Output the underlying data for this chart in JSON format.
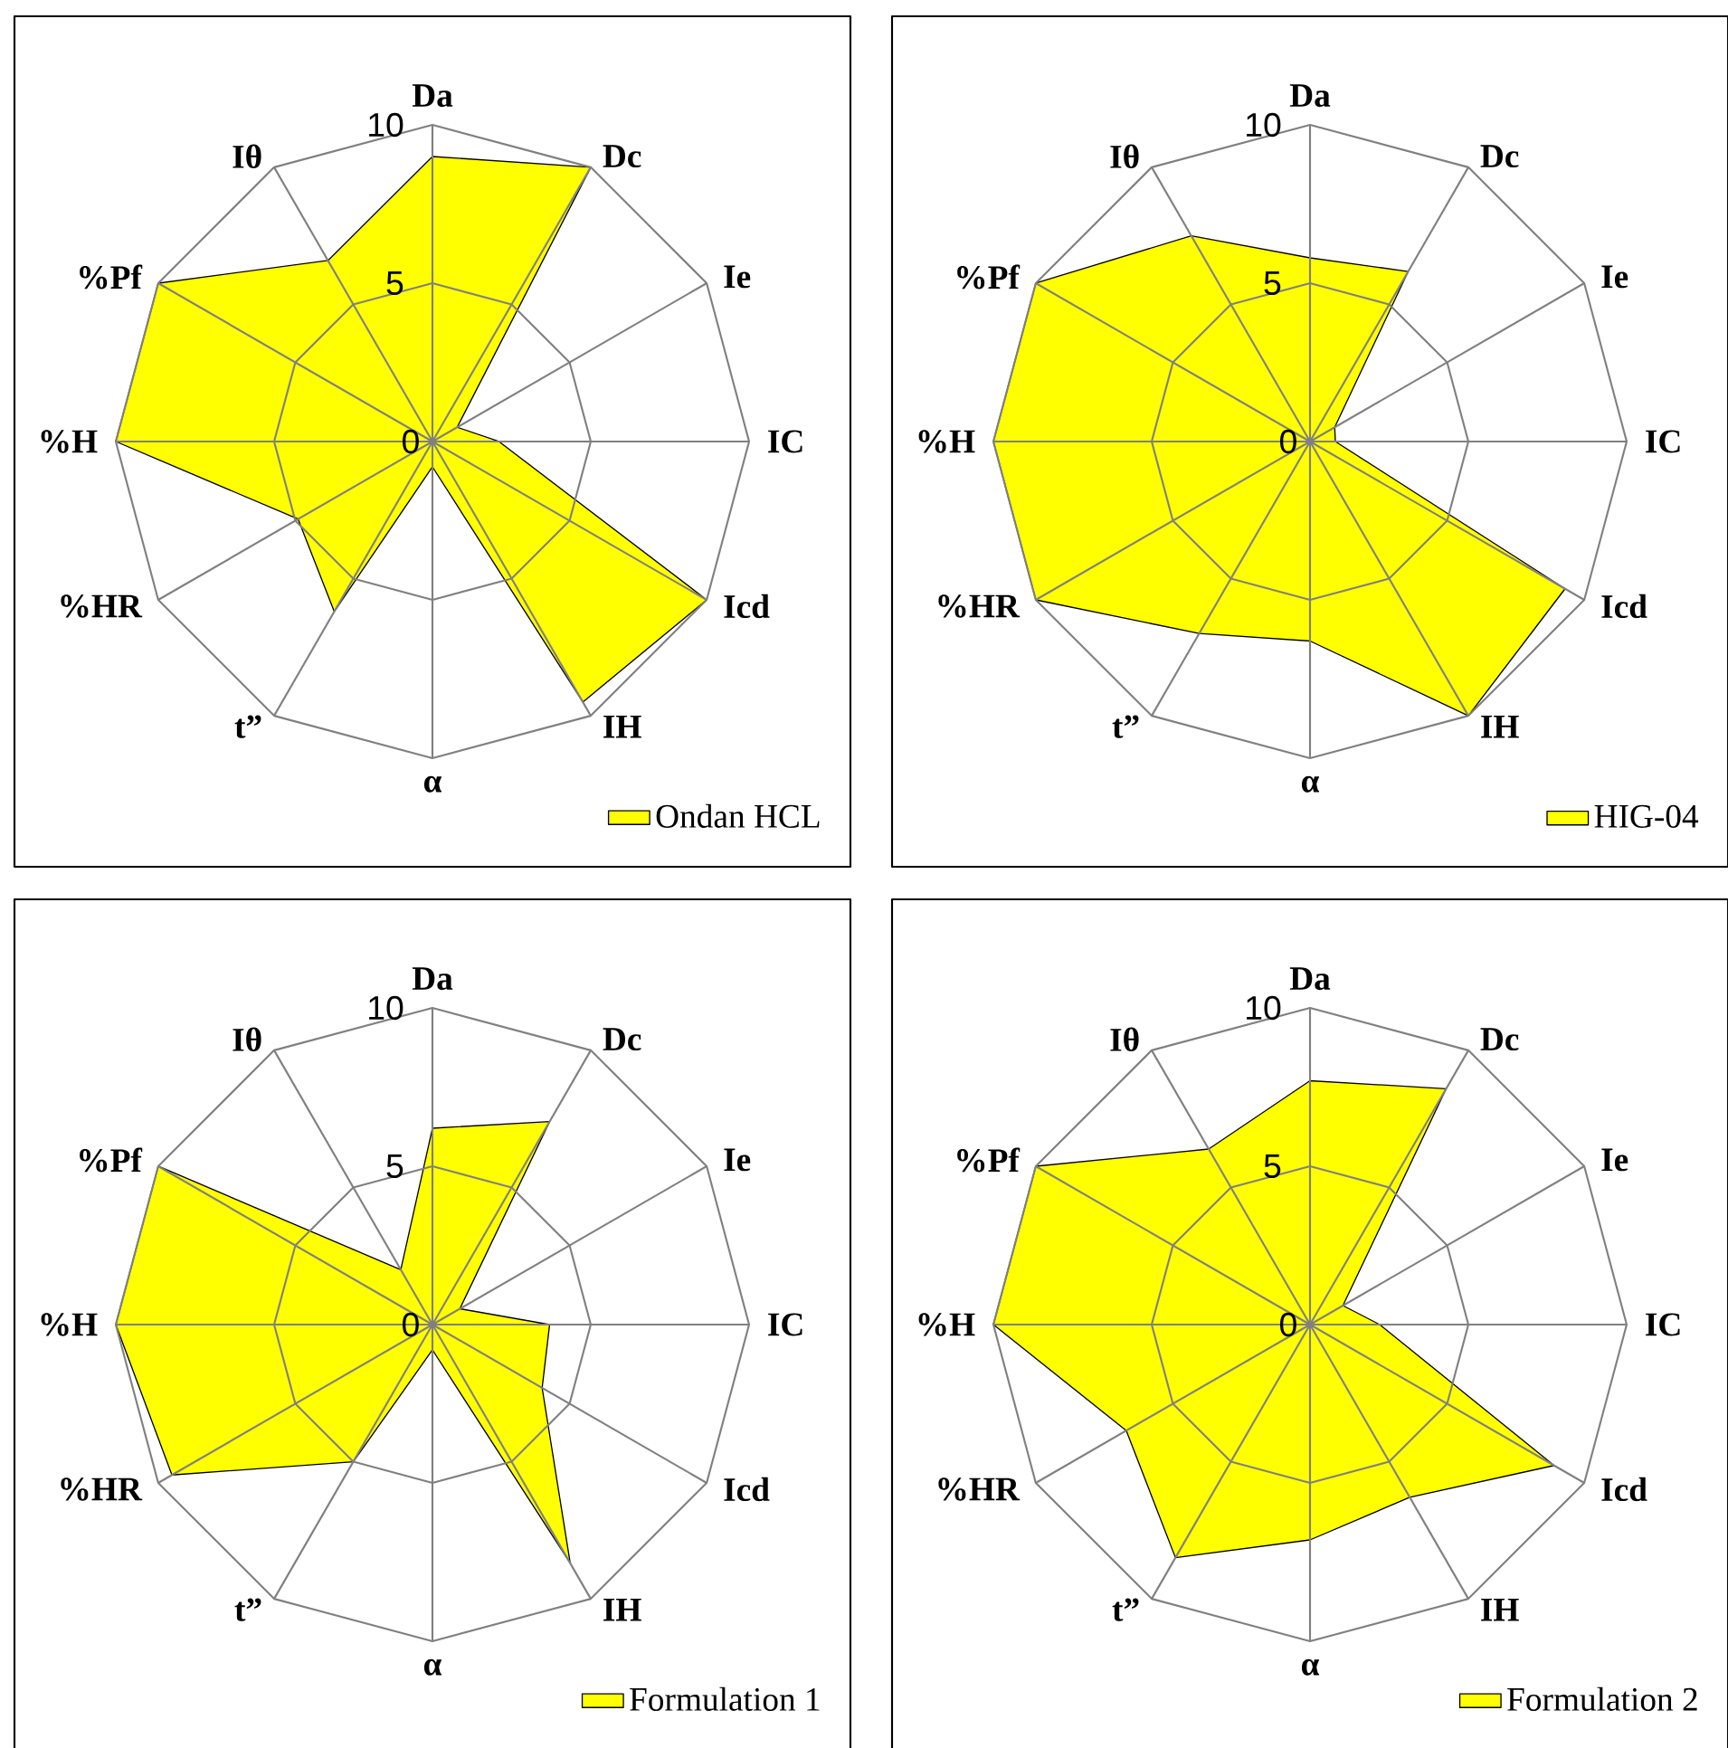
{
  "chart_data": [
    {
      "type": "radar",
      "categories": [
        "Da",
        "Dc",
        "Ie",
        "IC",
        "Icd",
        "IH",
        "α",
        "t”",
        "%HR",
        "%H",
        "%Pf",
        "Iθ"
      ],
      "series": [
        {
          "name": "Ondan HCL",
          "color": "#ffff00",
          "values": [
            9,
            10,
            0.9,
            2.1,
            10,
            9.5,
            0.8,
            6.2,
            4.9,
            10,
            10,
            6.6
          ]
        }
      ],
      "ylim": [
        0,
        10
      ],
      "yticks": [
        0,
        5,
        10
      ],
      "grid": true,
      "legend": "bottom right"
    },
    {
      "type": "radar",
      "categories": [
        "Da",
        "Dc",
        "Ie",
        "IC",
        "Icd",
        "IH",
        "α",
        "t”",
        "%HR",
        "%H",
        "%Pf",
        "Iθ"
      ],
      "series": [
        {
          "name": "HIG-04",
          "color": "#ffff00",
          "values": [
            5.8,
            6.2,
            0.9,
            0.8,
            9.3,
            10,
            6.3,
            7.0,
            10,
            10,
            10,
            7.5
          ]
        }
      ],
      "ylim": [
        0,
        10
      ],
      "yticks": [
        0,
        5,
        10
      ],
      "grid": true,
      "legend": "bottom right"
    },
    {
      "type": "radar",
      "categories": [
        "Da",
        "Dc",
        "Ie",
        "IC",
        "Icd",
        "IH",
        "α",
        "t”",
        "%HR",
        "%H",
        "%Pf",
        "Iθ"
      ],
      "series": [
        {
          "name": "Formulation 1",
          "color": "#ffff00",
          "values": [
            6.2,
            7.4,
            1.0,
            3.7,
            4.0,
            8.7,
            0.8,
            5.0,
            9.5,
            10,
            10,
            2.0
          ]
        }
      ],
      "ylim": [
        0,
        10
      ],
      "yticks": [
        0,
        5,
        10
      ],
      "grid": true,
      "legend": "bottom right"
    },
    {
      "type": "radar",
      "categories": [
        "Da",
        "Dc",
        "Ie",
        "IC",
        "Icd",
        "IH",
        "α",
        "t”",
        "%HR",
        "%H",
        "%Pf",
        "Iθ"
      ],
      "series": [
        {
          "name": "Formulation 2",
          "color": "#ffff00",
          "values": [
            7.7,
            8.6,
            1.2,
            2.2,
            8.9,
            6.3,
            6.8,
            8.5,
            6.7,
            10,
            10,
            6.4
          ]
        }
      ],
      "ylim": [
        0,
        10
      ],
      "yticks": [
        0,
        5,
        10
      ],
      "grid": true,
      "legend": "bottom right"
    }
  ]
}
